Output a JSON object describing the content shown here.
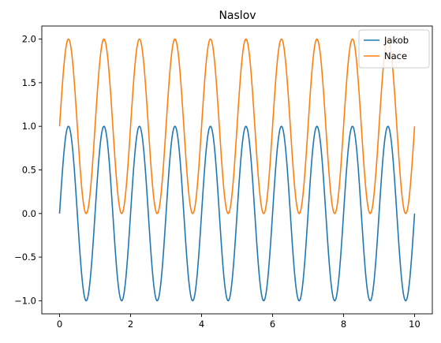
{
  "chart_data": {
    "type": "line",
    "title": "Naslov",
    "xlabel": "",
    "ylabel": "",
    "xlim": [
      -0.5,
      10.5
    ],
    "ylim": [
      -1.15,
      2.15
    ],
    "x_ticks": [
      0,
      2,
      4,
      6,
      8,
      10
    ],
    "x_tick_labels": [
      "0",
      "2",
      "4",
      "6",
      "8",
      "10"
    ],
    "y_ticks": [
      -1.0,
      -0.5,
      0.0,
      0.5,
      1.0,
      1.5,
      2.0
    ],
    "y_tick_labels": [
      "−1.0",
      "−0.5",
      "0.0",
      "0.5",
      "1.0",
      "1.5",
      "2.0"
    ],
    "grid": false,
    "legend_position": "top-right",
    "x_range": [
      0,
      10
    ],
    "series": [
      {
        "name": "Jakob",
        "function": "y = sin(2πx)",
        "color": "#1f77b4"
      },
      {
        "name": "Nace",
        "function": "y = sin(2πx) + 1",
        "color": "#ff7f0e"
      }
    ]
  }
}
